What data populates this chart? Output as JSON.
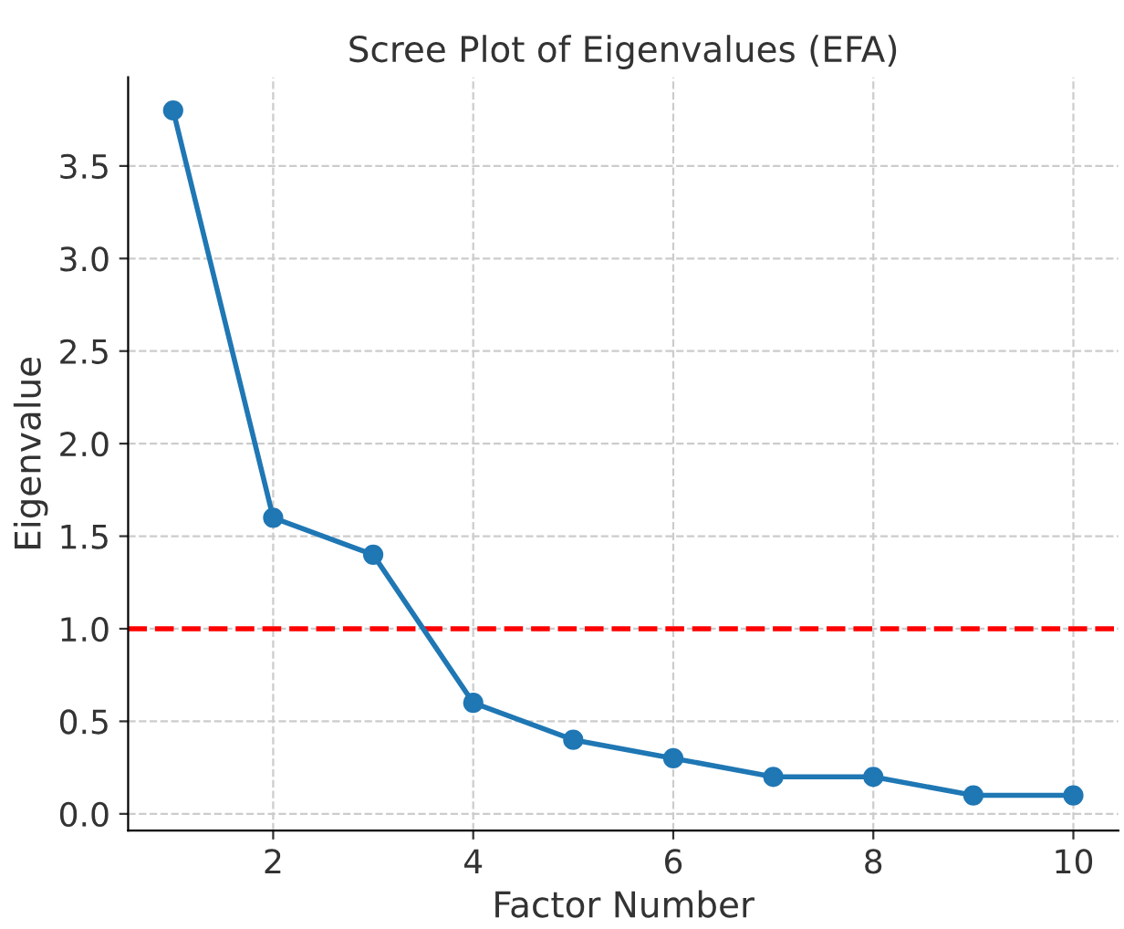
{
  "chart_data": {
    "type": "line",
    "title": "Scree Plot of Eigenvalues (EFA)",
    "xlabel": "Factor Number",
    "ylabel": "Eigenvalue",
    "x": [
      1,
      2,
      3,
      4,
      5,
      6,
      7,
      8,
      9,
      10
    ],
    "series": [
      {
        "color": "#1f77b4",
        "values": [
          3.8,
          1.6,
          1.4,
          0.6,
          0.4,
          0.3,
          0.2,
          0.2,
          0.1,
          0.1
        ]
      }
    ],
    "xlim": [
      0.55,
      10.45
    ],
    "xticks": [
      2,
      4,
      6,
      8,
      10
    ],
    "ylim": [
      -0.09,
      3.98
    ],
    "yticks": [
      {
        "value": 0,
        "label": "0.0"
      },
      0.5,
      {
        "value": 1,
        "label": "1.0"
      },
      1.5,
      {
        "value": 2,
        "label": "2.0"
      },
      2.5,
      {
        "value": 3,
        "label": "3.0"
      },
      3.5
    ],
    "ref_lines": [
      {
        "axis": "y",
        "value": 1.0,
        "color": "#ff0000",
        "line_style": "dashed"
      }
    ],
    "grid": true,
    "marker": "circle",
    "line_style": "solid"
  }
}
